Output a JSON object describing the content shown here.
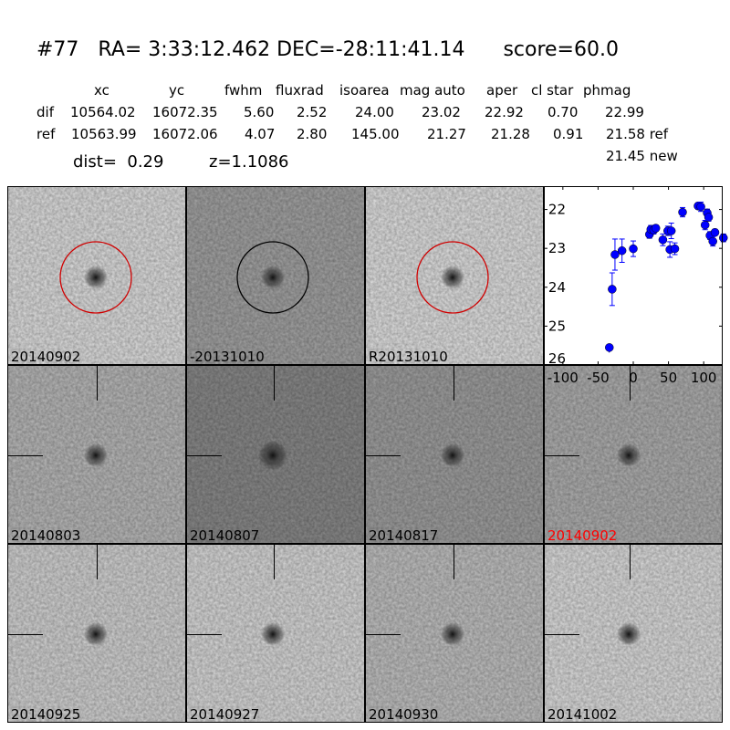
{
  "header": {
    "id": "#77",
    "ra": "RA= 3:33:12.462",
    "dec": "DEC=-28:11:41.14",
    "score": "score=60.0"
  },
  "table": {
    "columns": [
      "xc",
      "yc",
      "fwhm",
      "fluxrad",
      "isoarea",
      "mag auto",
      "aper",
      "cl star",
      "phmag"
    ],
    "rows": [
      {
        "label": "dif",
        "values": [
          "10564.02",
          "16072.35",
          "5.60",
          "2.52",
          "24.00",
          "23.02",
          "22.92",
          "0.70",
          "22.99"
        ]
      },
      {
        "label": "ref",
        "values": [
          "10563.99",
          "16072.06",
          "4.07",
          "2.80",
          "145.00",
          "21.27",
          "21.28",
          "0.91",
          "21.58 ref"
        ]
      }
    ],
    "new_phmag": "21.45 new",
    "dist": "dist=  0.29",
    "z": "z=1.1086"
  },
  "stamps": [
    {
      "label": "20140902",
      "bg": "#e2e2e2",
      "circle": "#d00000"
    },
    {
      "label": "-20131010",
      "bg": "#a6a6a6",
      "circle": "#000000"
    },
    {
      "label": "R20131010",
      "bg": "#e4e4e4",
      "circle": "#d00000"
    },
    {
      "label": "20140803",
      "bg": "#bcbcbc"
    },
    {
      "label": "20140807",
      "bg": "#8c8c8c"
    },
    {
      "label": "20140817",
      "bg": "#a2a2a2"
    },
    {
      "label": "20140902",
      "bg": "#b2b2b2",
      "label_color": "#ff0000"
    },
    {
      "label": "20140925",
      "bg": "#d6d6d6"
    },
    {
      "label": "20140927",
      "bg": "#dcdcdc"
    },
    {
      "label": "20140930",
      "bg": "#c4c4c4"
    },
    {
      "label": "20141002",
      "bg": "#e0e0e0"
    }
  ],
  "chart_data": {
    "type": "scatter",
    "title": "",
    "xlabel": "",
    "ylabel": "",
    "xlim": [
      -127,
      127
    ],
    "ylim": [
      26,
      21.4
    ],
    "y_inverted": true,
    "xticks": [
      -100,
      -50,
      0,
      50,
      100
    ],
    "yticks": [
      22,
      23,
      24,
      25,
      26
    ],
    "grid": false,
    "color": "#0000ff",
    "points": [
      {
        "x": -34,
        "y": 25.55,
        "err": 0
      },
      {
        "x": -30,
        "y": 24.05,
        "err": 0.42
      },
      {
        "x": -26,
        "y": 23.16,
        "err": 0.4
      },
      {
        "x": -16,
        "y": 23.06,
        "err": 0.3
      },
      {
        "x": 0,
        "y": 23.01,
        "err": 0.2
      },
      {
        "x": 23,
        "y": 22.64,
        "err": 0.1
      },
      {
        "x": 25,
        "y": 22.51,
        "err": 0.1
      },
      {
        "x": 29,
        "y": 22.53,
        "err": 0.1
      },
      {
        "x": 32,
        "y": 22.48,
        "err": 0.08
      },
      {
        "x": 42,
        "y": 22.78,
        "err": 0.15
      },
      {
        "x": 49,
        "y": 22.55,
        "err": 0.12
      },
      {
        "x": 54,
        "y": 22.55,
        "err": 0.2
      },
      {
        "x": 52,
        "y": 23.03,
        "err": 0.2
      },
      {
        "x": 59,
        "y": 23.01,
        "err": 0.15
      },
      {
        "x": 70,
        "y": 22.07,
        "err": 0.12
      },
      {
        "x": 92,
        "y": 21.91,
        "err": 0.08
      },
      {
        "x": 96,
        "y": 21.93,
        "err": 0.12
      },
      {
        "x": 105,
        "y": 22.09,
        "err": 0.1
      },
      {
        "x": 107,
        "y": 22.2,
        "err": 0.1
      },
      {
        "x": 102,
        "y": 22.4,
        "err": 0.12
      },
      {
        "x": 109,
        "y": 22.67,
        "err": 0.1
      },
      {
        "x": 116,
        "y": 22.59,
        "err": 0.08
      },
      {
        "x": 113,
        "y": 22.82,
        "err": 0.12
      },
      {
        "x": 128,
        "y": 22.73,
        "err": 0.1
      }
    ]
  }
}
